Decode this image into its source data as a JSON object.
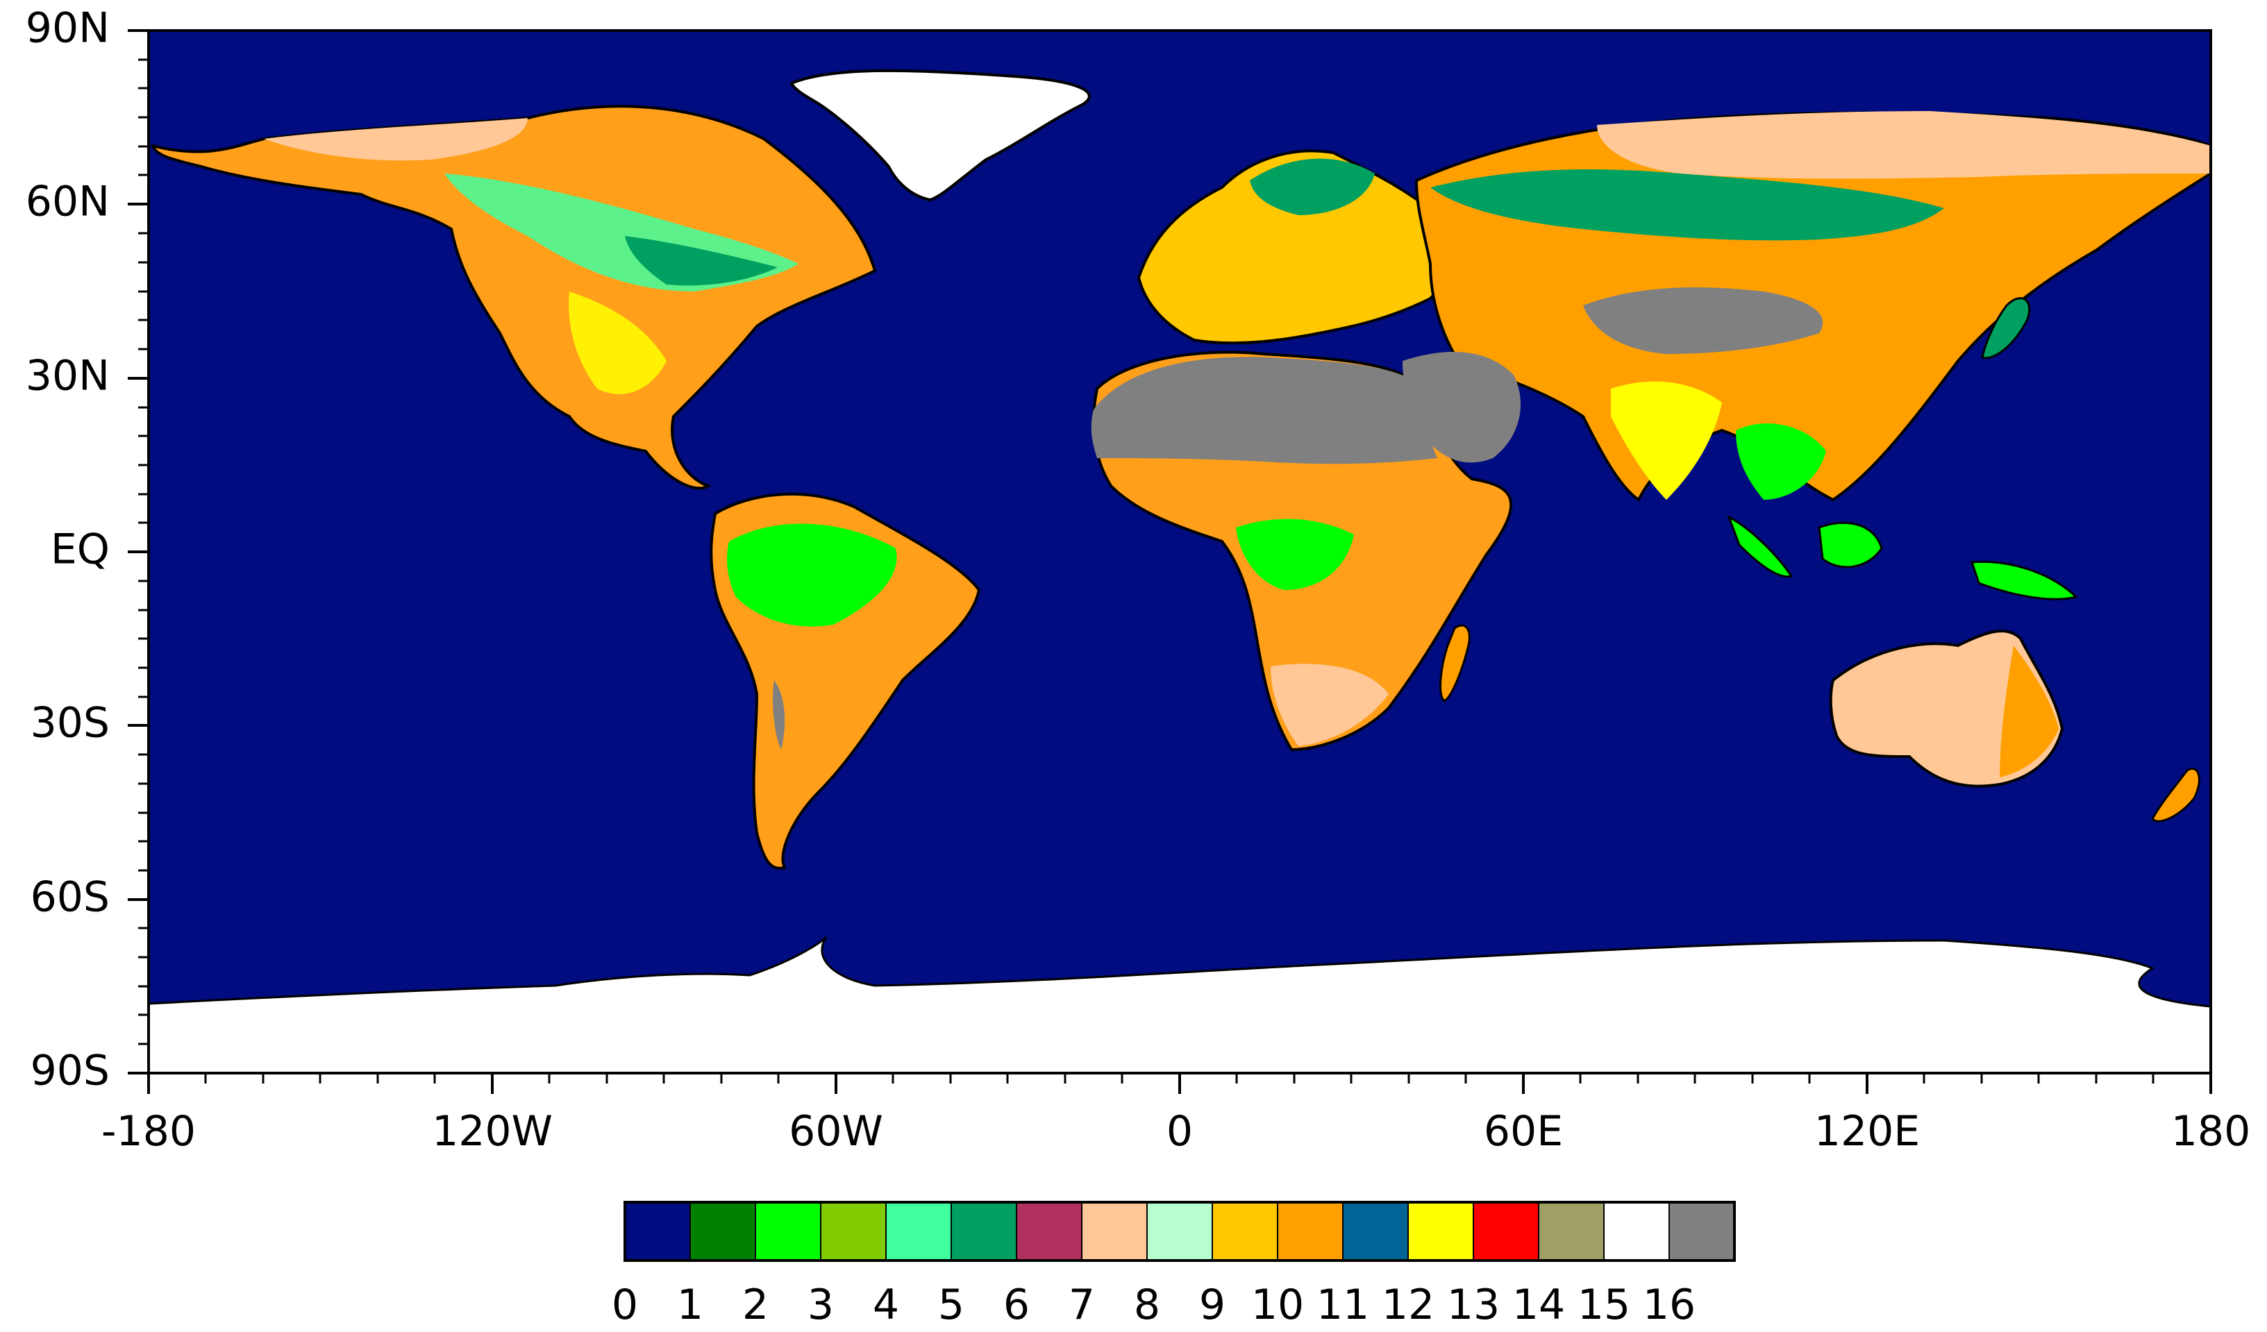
{
  "map": {
    "y_ticks": [
      "90N",
      "60N",
      "30N",
      "EQ",
      "30S",
      "60S",
      "90S"
    ],
    "x_ticks": [
      "-180",
      "120W",
      "60W",
      "0",
      "60E",
      "120E",
      "180"
    ]
  },
  "colorbar": {
    "labels": [
      "0",
      "1",
      "2",
      "3",
      "4",
      "5",
      "6",
      "7",
      "8",
      "9",
      "10",
      "11",
      "12",
      "13",
      "14",
      "15",
      "16"
    ],
    "colors": [
      "#000c7f",
      "#008000",
      "#00ff00",
      "#80cc00",
      "#40ff9f",
      "#00a060",
      "#b03060",
      "#ffc896",
      "#b8ffd0",
      "#ffc800",
      "#ffa000",
      "#006496",
      "#ffff00",
      "#ff0000",
      "#a0a064",
      "#ffffff",
      "#808080"
    ]
  },
  "colors": {
    "ocean": "#000c7f",
    "ice": "#ffffff",
    "barren": "#808080",
    "coast": "#000000"
  }
}
